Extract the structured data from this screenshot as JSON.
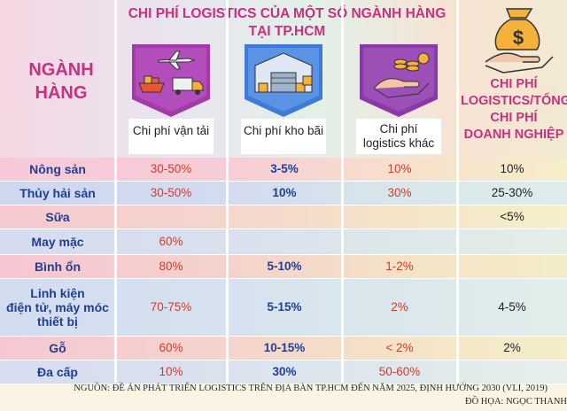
{
  "header": {
    "title_line1": "CHI PHÍ LOGISTICS CỦA MỘT SỐ NGÀNH HÀNG",
    "title_line2": "TẠI TP.HCM",
    "left_line1": "NGÀNH",
    "left_line2": "HÀNG",
    "right_line1": "CHI PHÍ",
    "right_line2": "LOGISTICS/TỔNG",
    "right_line3": "CHI PHÍ",
    "right_line4": "DOANH NGHIỆP"
  },
  "columns": [
    {
      "label_line1": "Chi phí vận tải",
      "label_line2": "",
      "icon": "transport-icon",
      "color": "#a23aa8"
    },
    {
      "label_line1": "Chi phí kho bãi",
      "label_line2": "",
      "icon": "warehouse-icon",
      "color": "#3c7bd8"
    },
    {
      "label_line1": "Chi phí",
      "label_line2": "logistics khác",
      "icon": "coins-hand-icon",
      "color": "#8a3aa6"
    }
  ],
  "rows": [
    {
      "name": [
        "Nông sản"
      ],
      "transport": "30-50%",
      "warehouse": "3-5%",
      "other": "10%",
      "ratio": "10%"
    },
    {
      "name": [
        "Thủy hải sản"
      ],
      "transport": "30-50%",
      "warehouse": "10%",
      "other": "30%",
      "ratio": "25-30%"
    },
    {
      "name": [
        "Sữa"
      ],
      "transport": "",
      "warehouse": "",
      "other": "",
      "ratio": "<5%"
    },
    {
      "name": [
        "May mặc"
      ],
      "transport": "60%",
      "warehouse": "",
      "other": "",
      "ratio": ""
    },
    {
      "name": [
        "Bình ổn"
      ],
      "transport": "80%",
      "warehouse": "5-10%",
      "other": "1-2%",
      "ratio": ""
    },
    {
      "name": [
        "Linh kiện",
        "điện tử, máy móc",
        "thiết bị"
      ],
      "transport": "70-75%",
      "warehouse": "5-15%",
      "other": "2%",
      "ratio": "4-5%"
    },
    {
      "name": [
        "Gỗ"
      ],
      "transport": "60%",
      "warehouse": "10-15%",
      "other": "< 2%",
      "ratio": "2%"
    },
    {
      "name": [
        "Đa cấp"
      ],
      "transport": "10%",
      "warehouse": "30%",
      "other": "50-60%",
      "ratio": ""
    }
  ],
  "footer": {
    "source": "NGUỒN: ĐỀ ÁN PHÁT TRIỂN LOGISTICS TRÊN ĐỊA BÀN TP.HCM ĐẾN NĂM 2025, ĐỊNH HƯỚNG 2030 (VLI, 2019)",
    "credit": "ĐỒ HỌA: NGỌC THANH"
  },
  "colors": {
    "title": "#c8317f",
    "row_name": "#1f3f96",
    "value_red": "#d63a2a"
  }
}
